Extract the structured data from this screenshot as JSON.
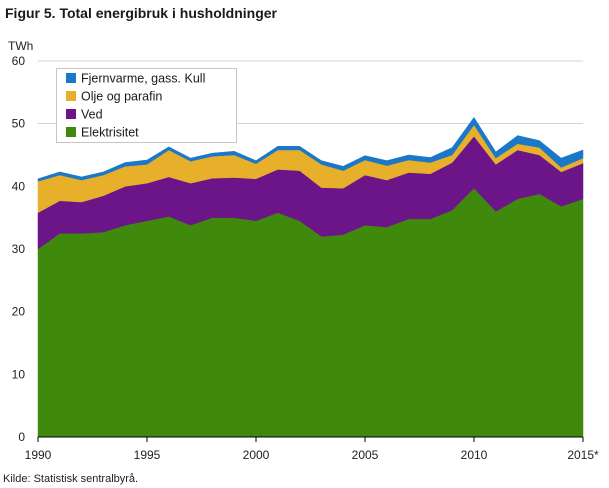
{
  "chart_data": {
    "type": "area",
    "stacked": true,
    "title": "Figur 5. Total energibruk i husholdninger",
    "ylabel": "TWh",
    "source_note": "Kilde: Statistisk sentralbyrå.",
    "xlim": [
      1990,
      2015
    ],
    "ylim": [
      0,
      60
    ],
    "yticks": [
      0,
      10,
      20,
      30,
      40,
      50,
      60
    ],
    "xticks": [
      1990,
      1995,
      2000,
      2005,
      2010,
      2015
    ],
    "xtick_labels": [
      "1990",
      "1995",
      "2000",
      "2005",
      "2010",
      "2015*"
    ],
    "grid": true,
    "legend_position": "top-left",
    "x": [
      1990,
      1991,
      1992,
      1993,
      1994,
      1995,
      1996,
      1997,
      1998,
      1999,
      2000,
      2001,
      2002,
      2003,
      2004,
      2005,
      2006,
      2007,
      2008,
      2009,
      2010,
      2011,
      2012,
      2013,
      2014,
      2015
    ],
    "series": [
      {
        "name": "Elektrisitet",
        "color": "#3f8a0c",
        "values": [
          30.0,
          32.5,
          32.5,
          32.7,
          33.8,
          34.5,
          35.2,
          33.8,
          35.0,
          35.0,
          34.5,
          35.8,
          34.5,
          32.0,
          32.3,
          33.8,
          33.5,
          34.8,
          34.8,
          36.2,
          39.7,
          36.0,
          38.0,
          38.8,
          36.8,
          38.0
        ]
      },
      {
        "name": "Ved",
        "color": "#6b1589",
        "values": [
          5.8,
          5.2,
          5.0,
          5.8,
          6.2,
          6.0,
          6.3,
          6.7,
          6.3,
          6.4,
          6.7,
          6.9,
          8.0,
          7.8,
          7.4,
          8.0,
          7.5,
          7.4,
          7.2,
          7.6,
          8.3,
          7.5,
          7.8,
          6.2,
          5.5,
          5.7
        ]
      },
      {
        "name": "Olje og parafin",
        "color": "#e8b02a",
        "values": [
          5.0,
          4.1,
          3.5,
          3.3,
          3.2,
          3.0,
          4.3,
          3.5,
          3.5,
          3.6,
          2.4,
          3.1,
          3.3,
          3.7,
          2.8,
          2.4,
          2.3,
          2.0,
          1.8,
          1.2,
          1.8,
          1.0,
          1.0,
          1.2,
          0.7,
          0.8
        ]
      },
      {
        "name": "Fjernvarme, gass. Kull",
        "color": "#1b78c9",
        "values": [
          0.4,
          0.5,
          0.5,
          0.5,
          0.6,
          0.7,
          0.5,
          0.5,
          0.5,
          0.6,
          0.5,
          0.6,
          0.6,
          0.6,
          0.7,
          0.7,
          0.8,
          0.8,
          0.8,
          1.2,
          1.2,
          1.0,
          1.3,
          1.1,
          1.5,
          1.3
        ]
      }
    ]
  }
}
